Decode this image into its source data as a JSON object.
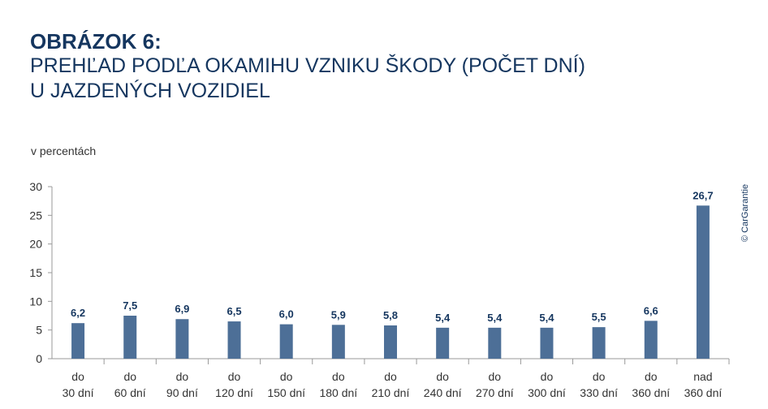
{
  "header": {
    "title": "OBRÁZOK 6:",
    "subtitle_line1": "PREHĽAD PODĽA OKAMIHU VZNIKU ŠKODY (POČET DNÍ)",
    "subtitle_line2": "U JAZDENÝCH VOZIDIEL"
  },
  "unit_label": "v percentách",
  "copyright": "© CarGarantie",
  "colors": {
    "bar": "#4d6f97",
    "title": "#15365f",
    "label": "#15365f",
    "axis": "#999999"
  },
  "chart_data": {
    "type": "bar",
    "title": "OBRÁZOK 6: PREHĽAD PODĽA OKAMIHU VZNIKU ŠKODY (POČET DNÍ) U JAZDENÝCH VOZIDIEL",
    "ylabel": "v percentách",
    "ylim": [
      0,
      30
    ],
    "yticks": [
      0,
      5,
      10,
      15,
      20,
      25,
      30
    ],
    "grid": false,
    "categories": [
      [
        "do",
        "30 dní"
      ],
      [
        "do",
        "60 dní"
      ],
      [
        "do",
        "90 dní"
      ],
      [
        "do",
        "120 dní"
      ],
      [
        "do",
        "150 dní"
      ],
      [
        "do",
        "180 dní"
      ],
      [
        "do",
        "210 dní"
      ],
      [
        "do",
        "240 dní"
      ],
      [
        "do",
        "270 dní"
      ],
      [
        "do",
        "300 dní"
      ],
      [
        "do",
        "330 dní"
      ],
      [
        "do",
        "360 dní"
      ],
      [
        "nad",
        "360 dní"
      ]
    ],
    "values": [
      6.2,
      7.5,
      6.9,
      6.5,
      6.0,
      5.9,
      5.8,
      5.4,
      5.4,
      5.4,
      5.5,
      6.6,
      26.7
    ],
    "value_labels": [
      "6,2",
      "7,5",
      "6,9",
      "6,5",
      "6,0",
      "5,9",
      "5,8",
      "5,4",
      "5,4",
      "5,4",
      "5,5",
      "6,6",
      "26,7"
    ]
  }
}
